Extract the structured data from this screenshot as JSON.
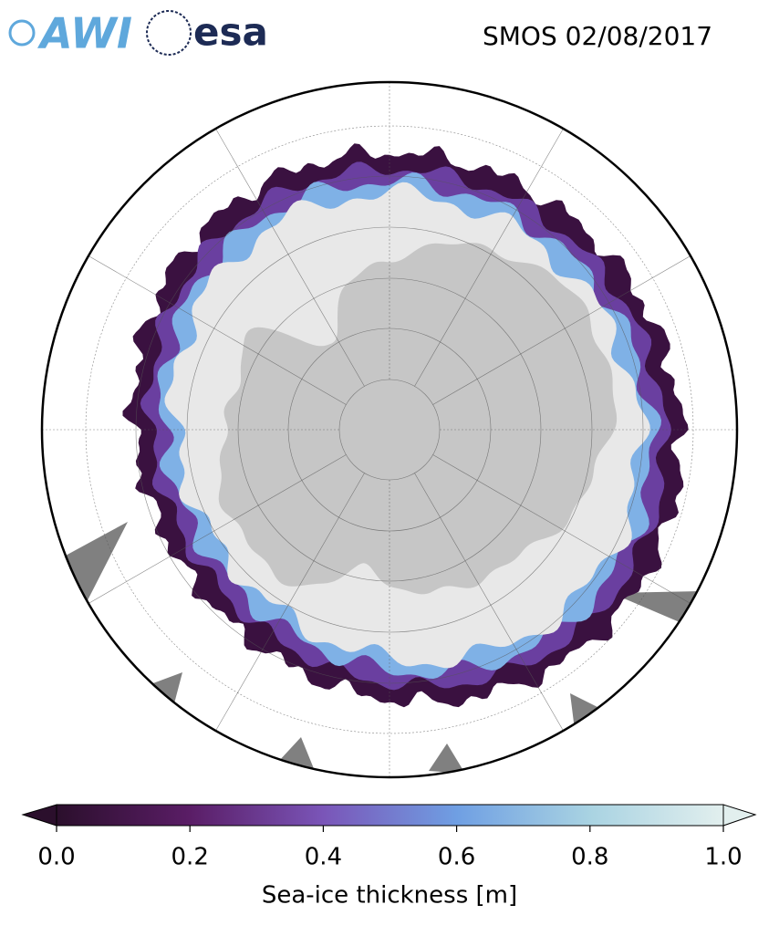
{
  "header": {
    "title": "SMOS 02/08/2017",
    "logos": {
      "awi": "AWI",
      "esa": "esa"
    }
  },
  "colorbar": {
    "label": "Sea-ice thickness [m]",
    "lim": [
      0,
      1
    ],
    "ticks": [
      {
        "value": 0,
        "label": "0.0"
      },
      {
        "value": 0.2,
        "label": "0.2"
      },
      {
        "value": 0.4,
        "label": "0.4"
      },
      {
        "value": 0.6,
        "label": "0.6"
      },
      {
        "value": 0.8,
        "label": "0.8"
      },
      {
        "value": 1,
        "label": "1.0"
      }
    ],
    "colors": [
      "#2b0f2c",
      "#5a1d66",
      "#7a55b8",
      "#6f9fe3",
      "#a9d3e2",
      "#e2efee"
    ]
  }
}
